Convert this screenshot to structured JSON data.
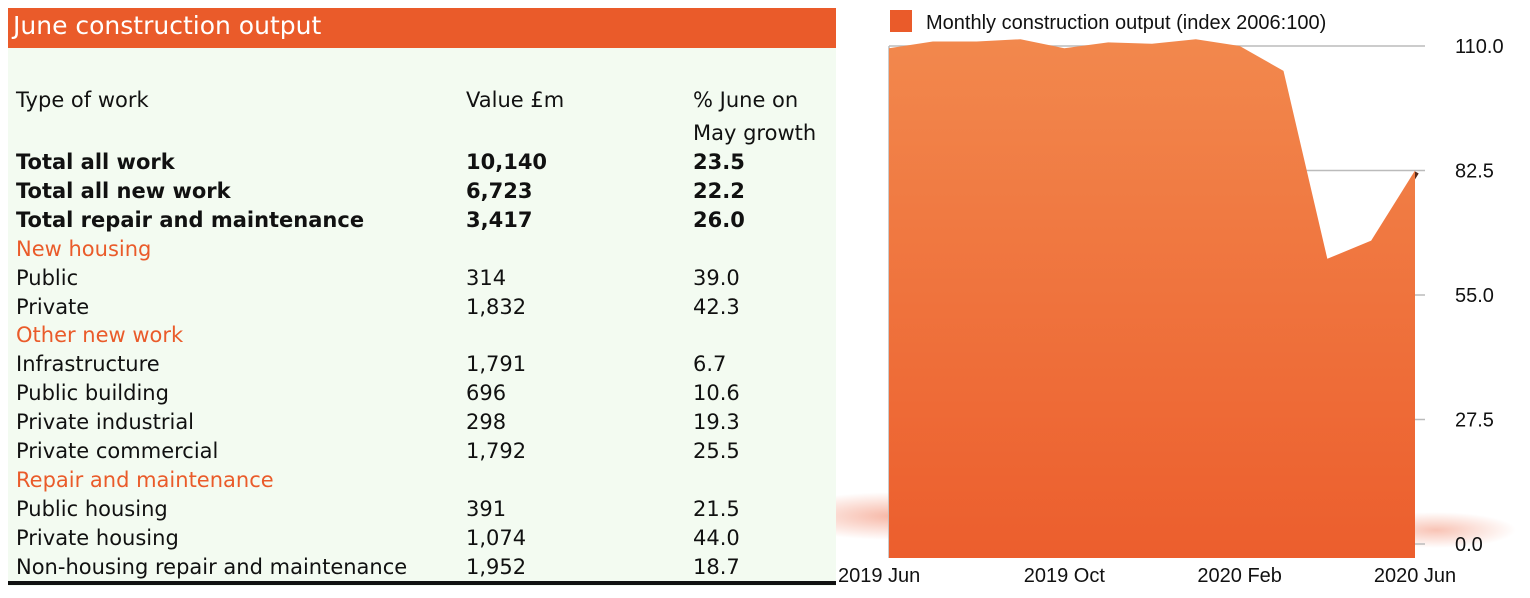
{
  "table": {
    "title": "June construction output",
    "header": {
      "type": "Type of work",
      "value": "Value £m",
      "pct_line1": "% June on",
      "pct_line2": "May growth"
    },
    "rows": [
      {
        "kind": "total",
        "label": "Total all work",
        "value": "10,140",
        "pct": "23.5"
      },
      {
        "kind": "total",
        "label": "Total all new work",
        "value": "6,723",
        "pct": "22.2"
      },
      {
        "kind": "total",
        "label": "Total repair and maintenance",
        "value": "3,417",
        "pct": "26.0"
      },
      {
        "kind": "section",
        "label": "New housing",
        "value": "",
        "pct": ""
      },
      {
        "kind": "item",
        "label": "Public",
        "value": "314",
        "pct": "39.0"
      },
      {
        "kind": "item",
        "label": "Private",
        "value": "1,832",
        "pct": "42.3"
      },
      {
        "kind": "section",
        "label": "Other new work",
        "value": "",
        "pct": ""
      },
      {
        "kind": "item",
        "label": "Infrastructure",
        "value": "1,791",
        "pct": "6.7"
      },
      {
        "kind": "item",
        "label": "Public building",
        "value": "696",
        "pct": "10.6"
      },
      {
        "kind": "item",
        "label": "Private industrial",
        "value": "298",
        "pct": "19.3"
      },
      {
        "kind": "item",
        "label": "Private commercial",
        "value": "1,792",
        "pct": "25.5"
      },
      {
        "kind": "section",
        "label": "Repair and maintenance",
        "value": "",
        "pct": ""
      },
      {
        "kind": "item",
        "label": "Public housing",
        "value": "391",
        "pct": "21.5"
      },
      {
        "kind": "item",
        "label": "Private housing",
        "value": "1,074",
        "pct": "44.0"
      },
      {
        "kind": "item",
        "label": "Non-housing repair and maintenance",
        "value": "1,952",
        "pct": "18.7"
      }
    ]
  },
  "colors": {
    "accent": "#ea5b2a",
    "area_fill": "#ef6a35",
    "area_fill_light": "#f2844a",
    "panel_bg": "#f3fbf1",
    "gridline": "#bbbbbb"
  },
  "chart_data": {
    "type": "area",
    "legend": "Monthly construction output (index 2006:100)",
    "legend_position": "top",
    "x": [
      "2019 Jun",
      "2019 Jul",
      "2019 Aug",
      "2019 Sep",
      "2019 Oct",
      "2019 Nov",
      "2019 Dec",
      "2020 Jan",
      "2020 Feb",
      "2020 Mar",
      "2020 Apr",
      "2020 May",
      "2020 Jun"
    ],
    "x_tick_labels": [
      "2019 Jun",
      "2019 Oct",
      "2020 Feb",
      "2020 Jun"
    ],
    "series": [
      {
        "name": "Monthly construction output (index 2006:100)",
        "values": [
          109.5,
          111.0,
          111.0,
          111.5,
          109.5,
          110.8,
          110.5,
          111.5,
          110.0,
          104.5,
          63.0,
          67.0,
          82.5
        ]
      }
    ],
    "y_ticks": [
      "110.0",
      "82.5",
      "55.0",
      "27.5",
      "0.0"
    ],
    "ylim": [
      0,
      110
    ],
    "y_axis_side": "right",
    "grid": true
  }
}
